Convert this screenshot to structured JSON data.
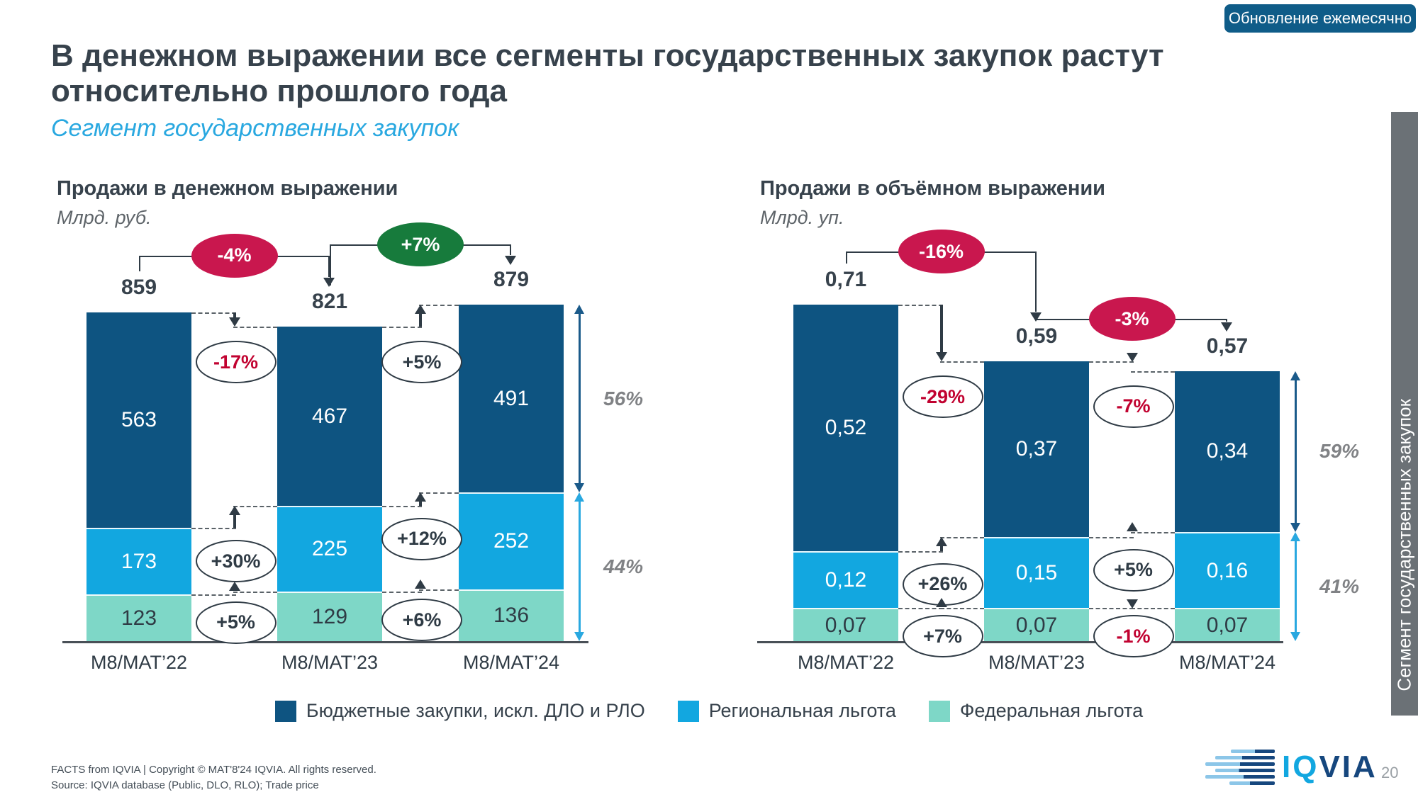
{
  "badge": {
    "label": "Обновление ежемесячно"
  },
  "title": {
    "line1": "В денежном выражении все сегменты государственных закупок растут",
    "line2": "относительно прошлого года"
  },
  "subtitle": "Сегмент государственных закупок",
  "side_tab": "Сегмент государственных закупок",
  "colors": {
    "dark_blue": "#0E5481",
    "light_blue": "#12A7E0",
    "mint": "#7ED7C7",
    "negative_fill": "#C9174E",
    "positive_fill": "#177B3C",
    "negative_text": "#C10230",
    "dark_text": "#2F3B45",
    "badge_blue": "#0F5C88",
    "tab_gray": "#6B7176",
    "share_dark_arrow": "#1A5A8A",
    "share_light_arrow": "#29A8E0",
    "subtitle_blue": "#29A8E0"
  },
  "legend": [
    {
      "label": "Бюджетные закупки, искл. ДЛО и РЛО",
      "color": "#0E5481"
    },
    {
      "label": "Региональная льгота",
      "color": "#12A7E0"
    },
    {
      "label": "Федеральная льгота",
      "color": "#7ED7C7"
    }
  ],
  "chart_data": [
    {
      "type": "bar",
      "stacked": true,
      "grid": false,
      "legend_position": "bottom",
      "title": "Продажи в денежном выражении",
      "unit": "Млрд. руб.",
      "categories": [
        "M8/MAT’22",
        "M8/MAT’23",
        "M8/MAT’24"
      ],
      "totals": [
        "859",
        "821",
        "879"
      ],
      "series": [
        {
          "name": "Бюджетные закупки, искл. ДЛО и РЛО",
          "color": "#0E5481",
          "text_color": "#FFFFFF",
          "values": [
            563,
            467,
            491
          ],
          "labels": [
            "563",
            "467",
            "491"
          ]
        },
        {
          "name": "Региональная льгота",
          "color": "#12A7E0",
          "text_color": "#FFFFFF",
          "values": [
            173,
            225,
            252
          ],
          "labels": [
            "173",
            "225",
            "252"
          ]
        },
        {
          "name": "Федеральная льгота",
          "color": "#7ED7C7",
          "text_color": "#2F3B45",
          "values": [
            123,
            129,
            136
          ],
          "labels": [
            "123",
            "129",
            "136"
          ]
        }
      ],
      "total_change": [
        {
          "label": "-4%"
        },
        {
          "label": "+7%"
        }
      ],
      "segment_changes": [
        [
          {
            "label": "-17%"
          },
          {
            "label": "+30%"
          },
          {
            "label": "+5%"
          }
        ],
        [
          {
            "label": "+5%"
          },
          {
            "label": "+12%"
          },
          {
            "label": "+6%"
          }
        ]
      ],
      "right_shares": [
        {
          "label": "56%"
        },
        {
          "label": "44%"
        }
      ]
    },
    {
      "type": "bar",
      "stacked": true,
      "grid": false,
      "legend_position": "bottom",
      "title": "Продажи в объёмном выражении",
      "unit": "Млрд. уп.",
      "categories": [
        "M8/MAT’22",
        "M8/MAT’23",
        "M8/MAT’24"
      ],
      "totals": [
        "0,71",
        "0,59",
        "0,57"
      ],
      "series": [
        {
          "name": "Бюджетные закупки, искл. ДЛО и РЛО",
          "color": "#0E5481",
          "text_color": "#FFFFFF",
          "values": [
            0.52,
            0.37,
            0.34
          ],
          "labels": [
            "0,52",
            "0,37",
            "0,34"
          ]
        },
        {
          "name": "Региональная льгота",
          "color": "#12A7E0",
          "text_color": "#FFFFFF",
          "values": [
            0.12,
            0.15,
            0.16
          ],
          "labels": [
            "0,12",
            "0,15",
            "0,16"
          ]
        },
        {
          "name": "Федеральная льгота",
          "color": "#7ED7C7",
          "text_color": "#2F3B45",
          "values": [
            0.07,
            0.07,
            0.07
          ],
          "labels": [
            "0,07",
            "0,07",
            "0,07"
          ]
        }
      ],
      "total_change": [
        {
          "label": "-16%"
        },
        {
          "label": "-3%"
        }
      ],
      "segment_changes": [
        [
          {
            "label": "-29%"
          },
          {
            "label": "+26%"
          },
          {
            "label": "+7%"
          }
        ],
        [
          {
            "label": "-7%"
          },
          {
            "label": "+5%"
          },
          {
            "label": "-1%"
          }
        ]
      ],
      "right_shares": [
        {
          "label": "59%"
        },
        {
          "label": "41%"
        }
      ]
    }
  ],
  "footer": {
    "line1": "FACTS from IQVIA | Copyright © MAT'8'24 IQVIA. All rights reserved.",
    "line2": "Source: IQVIA database (Public, DLO, RLO); Trade price",
    "page": "20",
    "logo_prefix": "IQ",
    "logo_suffix": "VIA"
  }
}
